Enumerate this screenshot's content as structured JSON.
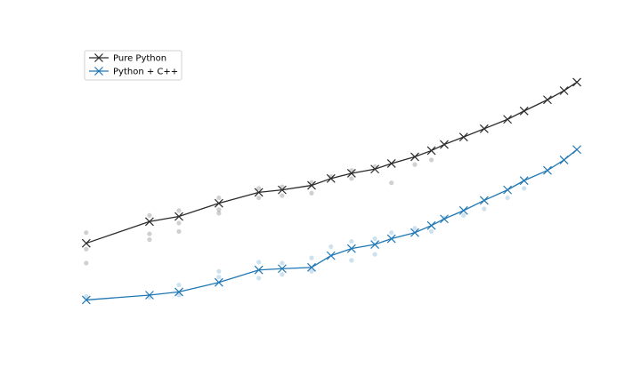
{
  "chart_data": {
    "type": "line",
    "title": "",
    "xlabel": "",
    "ylabel": "",
    "x_scale": "log",
    "y_scale": "log",
    "xlim": [
      0.9,
      5000
    ],
    "ylim": [
      5e-05,
      50
    ],
    "axes_visible": false,
    "grid": false,
    "legend_position": "top-left",
    "x": [
      1,
      3,
      5,
      10,
      20,
      30,
      50,
      70,
      100,
      150,
      200,
      300,
      400,
      500,
      700,
      1000,
      1500,
      2000,
      3000,
      4000,
      5000
    ],
    "series": [
      {
        "name": "Pure Python",
        "color": "#2b2b2b",
        "marker": "x",
        "values": [
          0.0055,
          0.015,
          0.019,
          0.035,
          0.058,
          0.065,
          0.08,
          0.11,
          0.14,
          0.17,
          0.22,
          0.3,
          0.4,
          0.53,
          0.75,
          1.1,
          1.7,
          2.5,
          4.2,
          6.4,
          9.5
        ],
        "scatter": [
          [
            1,
            0.009
          ],
          [
            1,
            0.0042
          ],
          [
            1,
            0.0022
          ],
          [
            3,
            0.02
          ],
          [
            3,
            0.0085
          ],
          [
            3,
            0.0065
          ],
          [
            5,
            0.025
          ],
          [
            5,
            0.014
          ],
          [
            5,
            0.0095
          ],
          [
            10,
            0.045
          ],
          [
            10,
            0.026
          ],
          [
            10,
            0.022
          ],
          [
            20,
            0.07
          ],
          [
            20,
            0.045
          ],
          [
            30,
            0.075
          ],
          [
            30,
            0.05
          ],
          [
            50,
            0.092
          ],
          [
            50,
            0.056
          ],
          [
            70,
            0.12
          ],
          [
            100,
            0.16
          ],
          [
            100,
            0.11
          ],
          [
            150,
            0.19
          ],
          [
            200,
            0.09
          ],
          [
            300,
            0.21
          ],
          [
            400,
            0.26
          ]
        ]
      },
      {
        "name": "Python + C++",
        "color": "#1f77b4",
        "marker": "x",
        "values": [
          0.0004,
          0.0005,
          0.00058,
          0.0009,
          0.0016,
          0.0017,
          0.0018,
          0.0031,
          0.0043,
          0.0052,
          0.0068,
          0.009,
          0.0125,
          0.017,
          0.025,
          0.04,
          0.065,
          0.1,
          0.16,
          0.26,
          0.42
        ],
        "scatter": [
          [
            1,
            0.00047
          ],
          [
            3,
            0.00045
          ],
          [
            5,
            0.0008
          ],
          [
            5,
            0.0005
          ],
          [
            10,
            0.0015
          ],
          [
            10,
            0.00115
          ],
          [
            20,
            0.0023
          ],
          [
            20,
            0.0011
          ],
          [
            30,
            0.0022
          ],
          [
            30,
            0.0013
          ],
          [
            50,
            0.0028
          ],
          [
            50,
            0.0015
          ],
          [
            70,
            0.0047
          ],
          [
            100,
            0.006
          ],
          [
            100,
            0.0025
          ],
          [
            150,
            0.0068
          ],
          [
            150,
            0.0033
          ],
          [
            200,
            0.009
          ],
          [
            300,
            0.011
          ],
          [
            400,
            0.0095
          ],
          [
            500,
            0.0175
          ],
          [
            700,
            0.02
          ],
          [
            1000,
            0.027
          ],
          [
            1500,
            0.045
          ],
          [
            2000,
            0.07
          ]
        ]
      }
    ]
  }
}
